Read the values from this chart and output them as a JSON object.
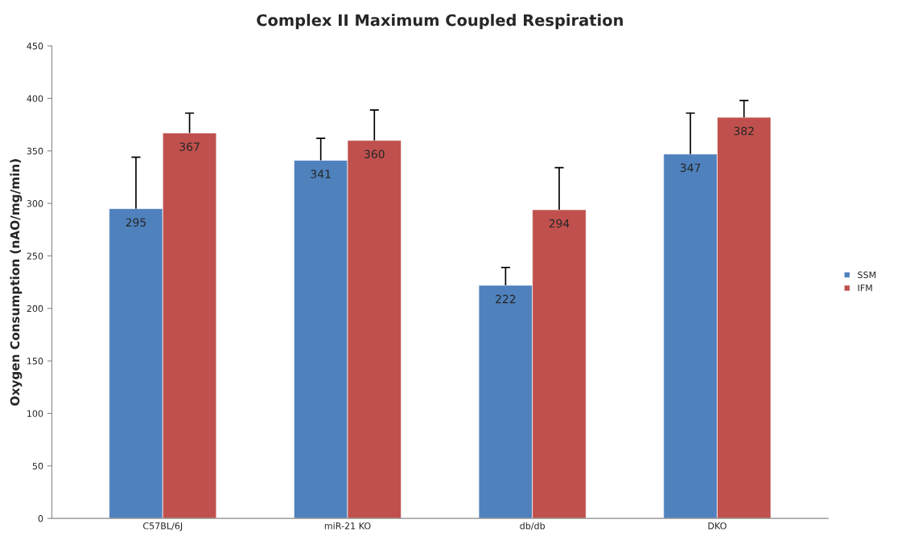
{
  "chart_data": {
    "type": "bar",
    "title": "Complex II Maximum Coupled Respiration",
    "ylabel": "Oxygen Consumption (nAO/mg/min)",
    "categories": [
      "C57BL/6J",
      "miR-21 KO",
      "db/db",
      "DKO"
    ],
    "series": [
      {
        "name": "SSM",
        "color": "#4f81bd",
        "values": [
          295,
          341,
          222,
          347
        ],
        "errors": [
          [
            295,
            344
          ],
          [
            341,
            362
          ],
          [
            222,
            239
          ],
          [
            347,
            386
          ]
        ]
      },
      {
        "name": "IFM",
        "color": "#c0504d",
        "values": [
          367,
          360,
          294,
          382
        ],
        "errors": [
          [
            367,
            386
          ],
          [
            360,
            389
          ],
          [
            294,
            334
          ],
          [
            382,
            398
          ]
        ]
      }
    ],
    "ylim": [
      0,
      450
    ],
    "yticks": [
      0,
      50,
      100,
      150,
      200,
      250,
      300,
      350,
      400,
      450
    ],
    "data_labels": true,
    "grid": false,
    "legend": "right"
  }
}
